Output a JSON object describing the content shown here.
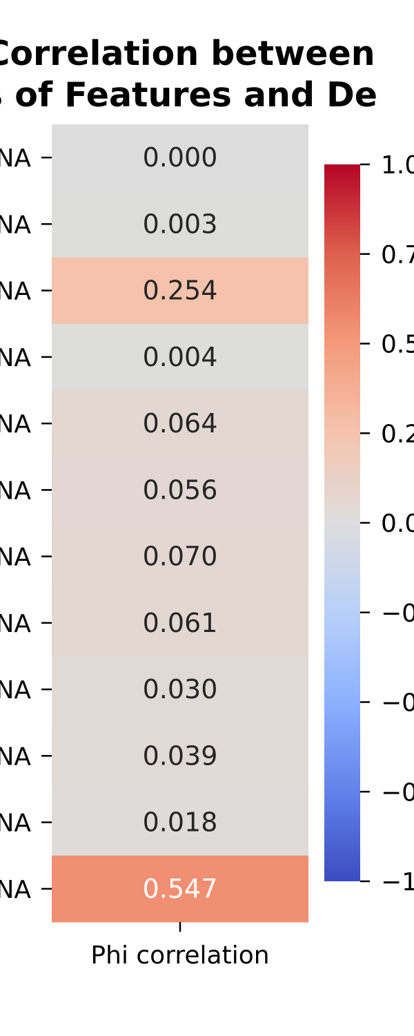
{
  "chart_data": {
    "type": "heatmap",
    "title_lines": [
      "Correlation between",
      "s of Features and De"
    ],
    "x_categories": [
      "Phi correlation"
    ],
    "y_labels": [
      "NA",
      "NA",
      "NA",
      "NA",
      "NA",
      "NA",
      "NA",
      "NA",
      "NA",
      "NA",
      "NA",
      "NA"
    ],
    "values": [
      0.0,
      0.003,
      0.254,
      0.004,
      0.064,
      0.056,
      0.07,
      0.061,
      0.03,
      0.039,
      0.018,
      0.547
    ],
    "value_labels": [
      "0.000",
      "0.003",
      "0.254",
      "0.004",
      "0.064",
      "0.056",
      "0.070",
      "0.061",
      "0.030",
      "0.039",
      "0.018",
      "0.547"
    ],
    "colormap": "coolwarm",
    "vmin": -1.0,
    "vmax": 1.0,
    "colorbar_ticks": [
      1.0,
      0.75,
      0.5,
      0.25,
      0.0,
      -0.25,
      -0.5,
      -0.75,
      -1.0
    ],
    "colorbar_tick_labels": [
      "1.0",
      "0.7",
      "0.5",
      "0.2",
      "0.0",
      "−0",
      "−0",
      "−0",
      "−1"
    ]
  }
}
